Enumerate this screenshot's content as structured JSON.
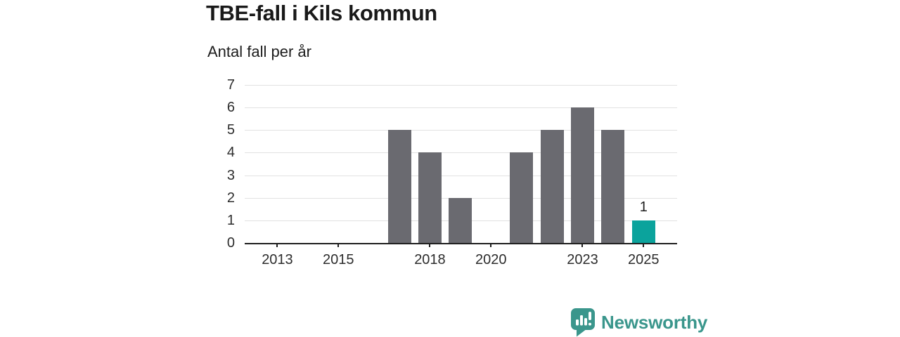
{
  "header": {
    "title": "TBE-fall i Kils kommun",
    "subtitle": "Antal fall per år"
  },
  "chart_data": {
    "type": "bar",
    "title": "TBE-fall i Kils kommun",
    "ylabel": "Antal fall per år",
    "x": [
      2012,
      2013,
      2014,
      2015,
      2016,
      2017,
      2018,
      2019,
      2020,
      2021,
      2022,
      2023,
      2024,
      2025
    ],
    "values": [
      0,
      0,
      0,
      0,
      0,
      5,
      4,
      2,
      0,
      4,
      5,
      6,
      5,
      1
    ],
    "xticks": [
      2013,
      2015,
      2018,
      2020,
      2023,
      2025
    ],
    "yticks": [
      0,
      1,
      2,
      3,
      4,
      5,
      6,
      7
    ],
    "ylim": [
      0,
      7
    ],
    "xlim": [
      2011.93,
      2026.1
    ],
    "grid": true,
    "legend": "none",
    "highlight": {
      "x": 2025,
      "value": 1,
      "data_label": "1"
    },
    "colors": {
      "bar": "#6a6a70",
      "highlight": "#0ba39c",
      "grid": "#e2e2e2",
      "axis": "#1f1f1f",
      "tick_text": "#2d2d2d"
    }
  },
  "footer": {
    "brand": "Newsworthy",
    "brand_color": "#3a968c",
    "logo_icon": "newsworthy-speech-bubble-bar-chart-icon"
  }
}
